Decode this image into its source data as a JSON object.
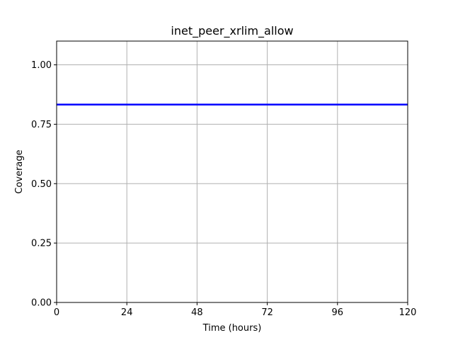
{
  "chart_data": {
    "type": "line",
    "title": "inet_peer_xrlim_allow",
    "xlabel": "Time (hours)",
    "ylabel": "Coverage",
    "xlim": [
      0,
      120
    ],
    "ylim": [
      0,
      1.1
    ],
    "xticks": [
      0,
      24,
      48,
      72,
      96,
      120
    ],
    "yticks": [
      0.0,
      0.25,
      0.5,
      0.75,
      1.0
    ],
    "xtick_labels": [
      "0",
      "24",
      "48",
      "72",
      "96",
      "120"
    ],
    "ytick_labels": [
      "0.00",
      "0.25",
      "0.50",
      "0.75",
      "1.00"
    ],
    "grid": true,
    "series": [
      {
        "color": "#0000ff",
        "x": [
          0,
          120
        ],
        "y": [
          0.833,
          0.833
        ]
      }
    ]
  }
}
